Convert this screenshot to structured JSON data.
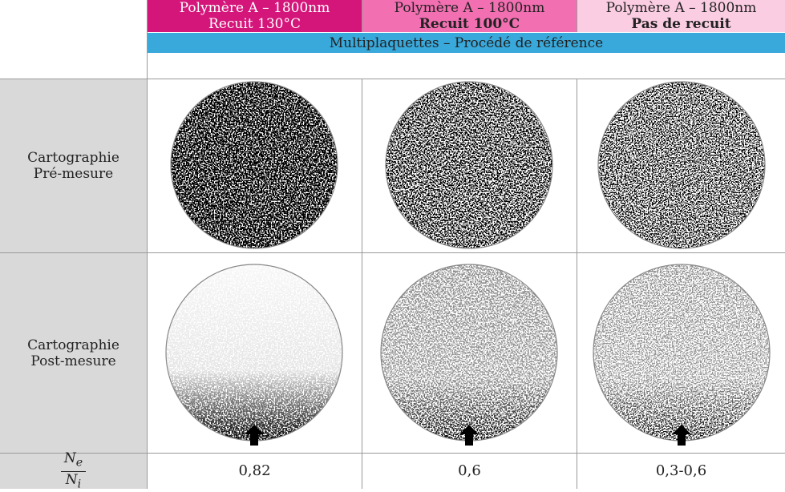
{
  "header": {
    "columns": [
      {
        "line1": "Polymère A – 1800nm",
        "line2": "Recuit 130°C"
      },
      {
        "line1": "Polymère A – 1800nm",
        "line2": "Recuit 100°C"
      },
      {
        "line1": "Polymère A – 1800nm",
        "line2": "Pas de recuit"
      }
    ],
    "band": "Multiplaquettes – Procédé de référence"
  },
  "rows": [
    {
      "label": [
        "Cartographie",
        "Pré-mesure"
      ]
    },
    {
      "label": [
        "Cartographie",
        "Post-mesure"
      ]
    }
  ],
  "ratio": {
    "numerator": {
      "base": "N",
      "sub": "e"
    },
    "denominator": {
      "base": "N",
      "sub": "i"
    },
    "values": [
      "0,82",
      "0,6",
      "0,3-0,6"
    ]
  }
}
